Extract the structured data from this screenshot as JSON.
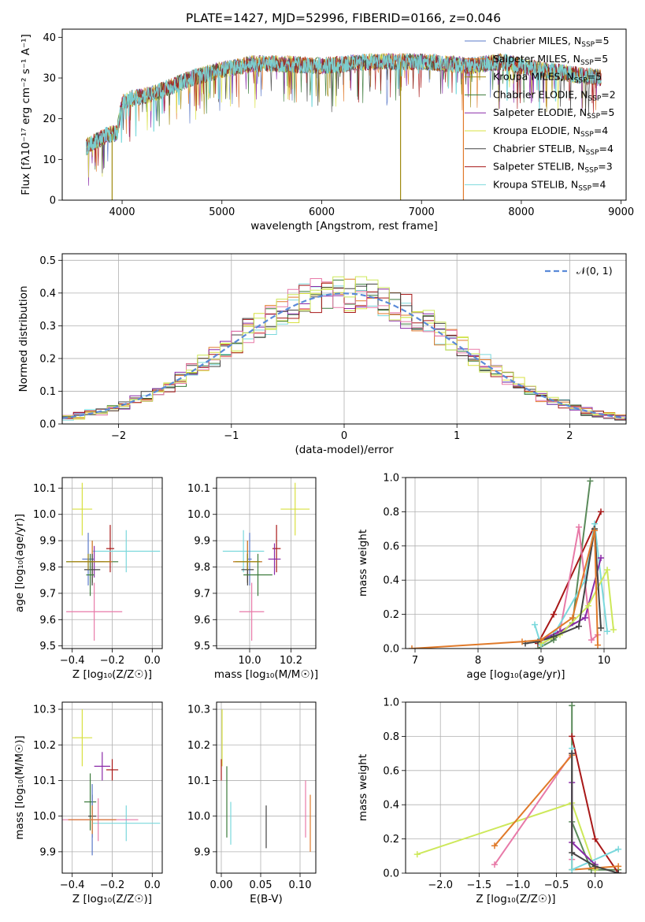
{
  "figure": {
    "title": "PLATE=1427, MJD=52996, FIBERID=0166, z=0.046"
  },
  "colors": {
    "model_colors": [
      "#5a78c8",
      "#e07a2a",
      "#a08a10",
      "#3a7a3a",
      "#8a2aa8",
      "#d8e040",
      "#444444",
      "#a81818",
      "#7ad8dc"
    ],
    "scatter_colors": [
      "#5a78c8",
      "#e07a2a",
      "#a08a10",
      "#3a7a3a",
      "#8a2aa8",
      "#d8e040",
      "#444444",
      "#a81818",
      "#7ad8dc",
      "#e87aa8",
      "#cde85a",
      "#5a8a5a"
    ],
    "normal_curve": "#5a8ad8"
  },
  "legend_entries": [
    {
      "label": "Chabrier MILES, N",
      "sub": "SSP",
      "eq": "=5",
      "color": "#5a78c8"
    },
    {
      "label": "Salpeter MILES, N",
      "sub": "SSP",
      "eq": "=5",
      "color": "#e07a2a"
    },
    {
      "label": "Kroupa MILES, N",
      "sub": "SSP",
      "eq": "=5",
      "color": "#a08a10"
    },
    {
      "label": "Chabrier ELODIE, N",
      "sub": "SSP",
      "eq": "=2",
      "color": "#3a7a3a"
    },
    {
      "label": "Salpeter ELODIE, N",
      "sub": "SSP",
      "eq": "=5",
      "color": "#8a2aa8"
    },
    {
      "label": "Kroupa ELODIE, N",
      "sub": "SSP",
      "eq": "=4",
      "color": "#d8e040"
    },
    {
      "label": "Chabrier STELIB, N",
      "sub": "SSP",
      "eq": "=4",
      "color": "#444444"
    },
    {
      "label": "Salpeter STELIB, N",
      "sub": "SSP",
      "eq": "=3",
      "color": "#a81818"
    },
    {
      "label": "Kroupa STELIB, N",
      "sub": "SSP",
      "eq": "=4",
      "color": "#7ad8dc"
    }
  ],
  "chart_data": [
    {
      "id": "spectrum",
      "type": "line",
      "xlabel": "wavelength [Angstrom, rest frame]",
      "ylabel": "Flux [fλ10⁻¹⁷ erg cm⁻² s⁻¹ A⁻¹]",
      "xlim": [
        3400,
        9050
      ],
      "ylim": [
        0,
        42
      ],
      "xticks": [
        "4000",
        "5000",
        "6000",
        "7000",
        "8000",
        "9000"
      ],
      "yticks": [
        "0",
        "10",
        "20",
        "30",
        "40"
      ],
      "grid": false,
      "legend": "upper right",
      "spectrum_x_range": [
        3640,
        8800
      ],
      "continuum_nodes": [
        [
          3640,
          13
        ],
        [
          3700,
          14
        ],
        [
          3850,
          16
        ],
        [
          3950,
          16.5
        ],
        [
          4000,
          24
        ],
        [
          4100,
          25
        ],
        [
          4300,
          26
        ],
        [
          4500,
          28
        ],
        [
          4700,
          30
        ],
        [
          5000,
          32
        ],
        [
          5300,
          33.5
        ],
        [
          5600,
          33.5
        ],
        [
          6000,
          33
        ],
        [
          6500,
          34
        ],
        [
          7000,
          34
        ],
        [
          7500,
          33
        ],
        [
          7800,
          34
        ],
        [
          8200,
          32
        ],
        [
          8500,
          31
        ],
        [
          8800,
          30
        ]
      ],
      "dropouts": [
        {
          "x": 3900,
          "to": 0
        },
        {
          "x": 6790,
          "to": 0
        },
        {
          "x": 7420,
          "to": 0
        }
      ]
    },
    {
      "id": "residual-histogram",
      "type": "histogram",
      "xlabel": "(data-model)/error",
      "ylabel": "Normed distribution",
      "xlim": [
        -2.5,
        2.5
      ],
      "ylim": [
        0,
        0.52
      ],
      "xticks": [
        "−2",
        "−1",
        "0",
        "1",
        "2"
      ],
      "yticks": [
        "0.0",
        "0.1",
        "0.2",
        "0.3",
        "0.4",
        "0.5"
      ],
      "grid": true,
      "legend": "upper right",
      "legend_label": "𝒩(0, 1)",
      "bin_width": 0.1,
      "reference_curve": "normal(0,1)"
    },
    {
      "id": "age-vs-Z",
      "type": "errorbar",
      "xlabel": "Z [log₁₀(Z/Z☉)]",
      "ylabel": "age  [log₁₀(age/yr)]",
      "xlim": [
        -0.45,
        0.05
      ],
      "ylim": [
        9.49,
        10.14
      ],
      "xticks": [
        "−0.4",
        "−0.2",
        "0.0"
      ],
      "yticks": [
        "9.5",
        "9.6",
        "9.7",
        "9.8",
        "9.9",
        "10.0",
        "10.1"
      ],
      "grid": true,
      "points": [
        {
          "x": -0.35,
          "y": 10.02,
          "ex": 0.05,
          "ey": 0.1,
          "c": 5
        },
        {
          "x": -0.21,
          "y": 9.87,
          "ex": 0.02,
          "ey": 0.09,
          "c": 7
        },
        {
          "x": -0.13,
          "y": 9.86,
          "ex": 0.17,
          "ey": 0.08,
          "c": 8
        },
        {
          "x": -0.32,
          "y": 9.83,
          "ex": 0.03,
          "ey": 0.1,
          "c": 0
        },
        {
          "x": -0.29,
          "y": 9.82,
          "ex": 0.05,
          "ey": 0.06,
          "c": 4
        },
        {
          "x": -0.3,
          "y": 9.82,
          "ex": 0.13,
          "ey": 0.08,
          "c": 3
        },
        {
          "x": -0.3,
          "y": 9.82,
          "ex": 0.1,
          "ey": 0.08,
          "c": 1
        },
        {
          "x": -0.3,
          "y": 9.79,
          "ex": 0.04,
          "ey": 0.06,
          "c": 6
        },
        {
          "x": -0.31,
          "y": 9.77,
          "ex": 0.02,
          "ey": 0.08,
          "c": 3
        },
        {
          "x": -0.29,
          "y": 9.63,
          "ex": 0.14,
          "ey": 0.11,
          "c": 9
        },
        {
          "x": -0.32,
          "y": 9.82,
          "ex": 0.11,
          "ey": 0.03,
          "c": 2
        }
      ]
    },
    {
      "id": "age-vs-mass",
      "type": "errorbar",
      "xlabel": "mass [log₁₀(M/M☉)]",
      "ylabel": "",
      "xlim": [
        9.84,
        10.32
      ],
      "ylim": [
        9.49,
        10.14
      ],
      "xticks": [
        "10.0",
        "10.2"
      ],
      "yticks": [
        "9.5",
        "9.6",
        "9.7",
        "9.8",
        "9.9",
        "10.0",
        "10.1"
      ],
      "grid": true,
      "points": [
        {
          "x": 10.22,
          "y": 10.02,
          "ex": 0.07,
          "ey": 0.1,
          "c": 5
        },
        {
          "x": 10.13,
          "y": 9.87,
          "ex": 0.02,
          "ey": 0.09,
          "c": 7
        },
        {
          "x": 9.97,
          "y": 9.86,
          "ex": 0.1,
          "ey": 0.08,
          "c": 8
        },
        {
          "x": 10.0,
          "y": 9.83,
          "ex": 0.01,
          "ey": 0.1,
          "c": 0
        },
        {
          "x": 10.12,
          "y": 9.83,
          "ex": 0.03,
          "ey": 0.06,
          "c": 4
        },
        {
          "x": 9.99,
          "y": 9.82,
          "ex": 0.07,
          "ey": 0.08,
          "c": 3
        },
        {
          "x": 9.99,
          "y": 9.82,
          "ex": 0.07,
          "ey": 0.08,
          "c": 1
        },
        {
          "x": 9.99,
          "y": 9.79,
          "ex": 0.03,
          "ey": 0.06,
          "c": 6
        },
        {
          "x": 10.04,
          "y": 9.77,
          "ex": 0.07,
          "ey": 0.08,
          "c": 3
        },
        {
          "x": 10.01,
          "y": 9.63,
          "ex": 0.06,
          "ey": 0.11,
          "c": 9
        },
        {
          "x": 9.99,
          "y": 9.82,
          "ex": 0.06,
          "ey": 0.03,
          "c": 2
        }
      ]
    },
    {
      "id": "mass-weight-vs-age",
      "type": "line",
      "xlabel": "age  [log₁₀(age/yr)]",
      "ylabel": "mass weight",
      "xlim": [
        6.85,
        10.35
      ],
      "ylim": [
        0,
        1
      ],
      "xticks": [
        "7",
        "8",
        "9",
        "10"
      ],
      "yticks": [
        "0.0",
        "0.2",
        "0.4",
        "0.6",
        "0.8",
        "1.0"
      ],
      "grid": true,
      "series": [
        {
          "c": 11,
          "points": [
            [
              8.95,
              0.0
            ],
            [
              9.2,
              0.05
            ],
            [
              9.5,
              0.15
            ],
            [
              9.78,
              0.98
            ]
          ]
        },
        {
          "c": 7,
          "points": [
            [
              8.95,
              0.03
            ],
            [
              9.2,
              0.2
            ],
            [
              9.95,
              0.8
            ]
          ]
        },
        {
          "c": 9,
          "points": [
            [
              9.0,
              0.02
            ],
            [
              9.3,
              0.1
            ],
            [
              9.6,
              0.71
            ],
            [
              9.8,
              0.05
            ],
            [
              9.9,
              0.08
            ]
          ]
        },
        {
          "c": 8,
          "points": [
            [
              8.9,
              0.14
            ],
            [
              9.0,
              0.02
            ],
            [
              9.2,
              0.08
            ],
            [
              9.7,
              0.4
            ],
            [
              9.85,
              0.73
            ],
            [
              10.05,
              0.1
            ]
          ]
        },
        {
          "c": 4,
          "points": [
            [
              9.0,
              0.05
            ],
            [
              9.3,
              0.1
            ],
            [
              9.7,
              0.18
            ],
            [
              9.95,
              0.53
            ]
          ]
        },
        {
          "c": 10,
          "points": [
            [
              9.0,
              0.03
            ],
            [
              9.3,
              0.08
            ],
            [
              9.75,
              0.25
            ],
            [
              10.05,
              0.46
            ],
            [
              10.15,
              0.11
            ]
          ]
        },
        {
          "c": 6,
          "points": [
            [
              8.75,
              0.03
            ],
            [
              8.95,
              0.04
            ],
            [
              9.2,
              0.07
            ],
            [
              9.6,
              0.13
            ],
            [
              9.85,
              0.7
            ],
            [
              9.95,
              0.12
            ]
          ]
        },
        {
          "c": 1,
          "points": [
            [
              6.95,
              0.0
            ],
            [
              8.7,
              0.04
            ],
            [
              9.0,
              0.05
            ],
            [
              9.5,
              0.18
            ],
            [
              9.85,
              0.69
            ],
            [
              9.9,
              0.02
            ]
          ]
        }
      ]
    },
    {
      "id": "mass-vs-Z",
      "type": "errorbar",
      "xlabel": "Z [log₁₀(Z/Z☉)]",
      "ylabel": "mass [log₁₀(M/M☉)]",
      "xlim": [
        -0.45,
        0.05
      ],
      "ylim": [
        9.84,
        10.32
      ],
      "xticks": [
        "−0.4",
        "−0.2",
        "0.0"
      ],
      "yticks": [
        "9.9",
        "10.0",
        "10.1",
        "10.2",
        "10.3"
      ],
      "grid": true,
      "points": [
        {
          "x": -0.35,
          "y": 10.22,
          "ex": 0.05,
          "ey": 0.08,
          "c": 5
        },
        {
          "x": -0.2,
          "y": 10.13,
          "ex": 0.03,
          "ey": 0.03,
          "c": 7
        },
        {
          "x": -0.25,
          "y": 10.14,
          "ex": 0.04,
          "ey": 0.04,
          "c": 4
        },
        {
          "x": -0.31,
          "y": 10.04,
          "ex": 0.03,
          "ey": 0.08,
          "c": 3
        },
        {
          "x": -0.3,
          "y": 10.0,
          "ex": 0.02,
          "ey": 0.06,
          "c": 6
        },
        {
          "x": -0.3,
          "y": 9.99,
          "ex": 0.12,
          "ey": 0.1,
          "c": 0
        },
        {
          "x": -0.13,
          "y": 9.98,
          "ex": 0.17,
          "ey": 0.05,
          "c": 8
        },
        {
          "x": -0.27,
          "y": 9.99,
          "ex": 0.2,
          "ey": 0.06,
          "c": 9
        },
        {
          "x": -0.3,
          "y": 9.99,
          "ex": 0.12,
          "ey": 0.04,
          "c": 1
        }
      ]
    },
    {
      "id": "mass-vs-ebv",
      "type": "errorbar",
      "xlabel": "E(B-V)",
      "ylabel": "",
      "xlim": [
        -0.006,
        0.12
      ],
      "ylim": [
        9.84,
        10.32
      ],
      "xticks": [
        "0.00",
        "0.05",
        "0.10"
      ],
      "yticks": [
        "9.9",
        "10.0",
        "10.1",
        "10.2",
        "10.3"
      ],
      "grid": true,
      "points": [
        {
          "x": 0.001,
          "y": 10.22,
          "ex": 0.0,
          "ey": 0.08,
          "c": 5
        },
        {
          "x": 0.0,
          "y": 10.13,
          "ex": 0.0,
          "ey": 0.03,
          "c": 7
        },
        {
          "x": 0.007,
          "y": 10.04,
          "ex": 0.0,
          "ey": 0.1,
          "c": 3
        },
        {
          "x": 0.012,
          "y": 9.98,
          "ex": 0.0,
          "ey": 0.06,
          "c": 8
        },
        {
          "x": 0.057,
          "y": 9.97,
          "ex": 0.0,
          "ey": 0.06,
          "c": 6
        },
        {
          "x": 0.107,
          "y": 10.02,
          "ex": 0.0,
          "ey": 0.08,
          "c": 9
        },
        {
          "x": 0.113,
          "y": 9.98,
          "ex": 0.0,
          "ey": 0.08,
          "c": 1
        }
      ]
    },
    {
      "id": "mass-weight-vs-Z",
      "type": "line",
      "xlabel": "Z [log₁₀(Z/Z☉)]",
      "ylabel": "mass weight",
      "xlim": [
        -2.45,
        0.4
      ],
      "ylim": [
        0,
        1
      ],
      "xticks": [
        "−2.0",
        "−1.5",
        "−1.0",
        "−0.5",
        "0.0"
      ],
      "yticks": [
        "0.0",
        "0.2",
        "0.4",
        "0.6",
        "0.8",
        "1.0"
      ],
      "grid": true,
      "series": [
        {
          "c": 11,
          "points": [
            [
              -0.3,
              0.98
            ],
            [
              -0.3,
              0.3
            ],
            [
              -0.05,
              0.02
            ],
            [
              0.3,
              0.02
            ]
          ]
        },
        {
          "c": 7,
          "points": [
            [
              -0.3,
              0.8
            ],
            [
              0.0,
              0.2
            ],
            [
              0.3,
              0.0
            ]
          ]
        },
        {
          "c": 10,
          "points": [
            [
              -2.3,
              0.11
            ],
            [
              -0.3,
              0.41
            ],
            [
              0.0,
              0.02
            ]
          ]
        },
        {
          "c": 9,
          "points": [
            [
              -1.3,
              0.05
            ],
            [
              -0.3,
              0.7
            ],
            [
              -0.3,
              0.08
            ]
          ]
        },
        {
          "c": 1,
          "points": [
            [
              -1.3,
              0.16
            ],
            [
              -0.3,
              0.69
            ],
            [
              -0.3,
              0.02
            ],
            [
              0.3,
              0.04
            ]
          ]
        },
        {
          "c": 8,
          "points": [
            [
              -0.3,
              0.73
            ],
            [
              -0.3,
              0.02
            ],
            [
              0.3,
              0.14
            ]
          ]
        },
        {
          "c": 4,
          "points": [
            [
              -0.3,
              0.53
            ],
            [
              -0.3,
              0.18
            ],
            [
              0.0,
              0.05
            ]
          ]
        },
        {
          "c": 6,
          "points": [
            [
              -0.3,
              0.7
            ],
            [
              -0.3,
              0.12
            ],
            [
              0.0,
              0.04
            ],
            [
              0.3,
              0.0
            ]
          ]
        }
      ]
    }
  ]
}
